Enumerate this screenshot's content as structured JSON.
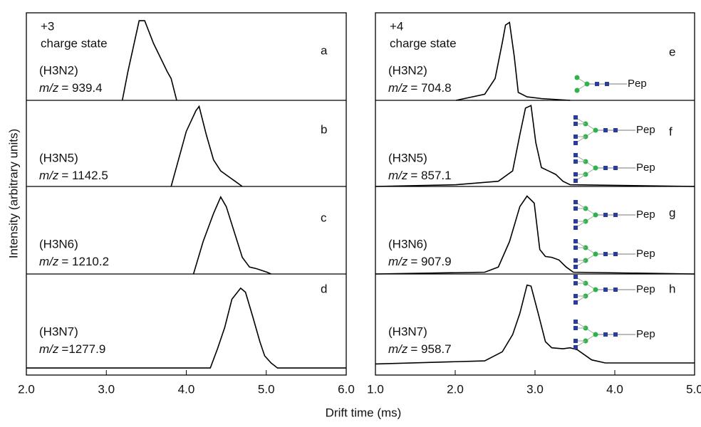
{
  "y_label": "Intensity (arbitrary units)",
  "x_label": "Drift time (ms)",
  "chart_data": [
    {
      "type": "line",
      "charge": "+3",
      "charge_text": "charge state",
      "color": "#000000",
      "xlim": [
        2.0,
        6.0
      ],
      "ylim": [
        0,
        1
      ],
      "xticks": [
        {
          "value": 2,
          "label": "2.0"
        },
        {
          "value": 3,
          "label": "3.0"
        },
        {
          "value": 4,
          "label": "4.0"
        },
        {
          "value": 5,
          "label": "5.0"
        },
        {
          "value": 6,
          "label": "6.0"
        }
      ],
      "series": [
        {
          "name": "a",
          "label": "(H3N2)",
          "mz_prefix": "m/z",
          "mz_text": "= 939.4",
          "x": [
            3.2,
            3.27,
            3.41,
            3.48,
            3.59,
            3.67,
            3.76,
            3.81,
            3.88
          ],
          "values": [
            0,
            0.33,
            0.91,
            0.91,
            0.65,
            0.5,
            0.33,
            0.25,
            0
          ]
        },
        {
          "name": "b",
          "label": "(H3N5)",
          "mz_prefix": "m/z",
          "mz_text": "= 1142.5",
          "x": [
            3.81,
            4.0,
            4.12,
            4.16,
            4.25,
            4.34,
            4.43,
            4.52,
            4.61,
            4.7
          ],
          "values": [
            0,
            0.64,
            0.88,
            0.93,
            0.6,
            0.31,
            0.18,
            0.12,
            0.06,
            0
          ]
        },
        {
          "name": "c",
          "label": "(H3N6)",
          "mz_prefix": "m/z",
          "mz_text": "= 1210.2",
          "x": [
            4.09,
            4.21,
            4.34,
            4.43,
            4.5,
            4.61,
            4.7,
            4.79,
            4.88,
            5.01,
            5.06
          ],
          "values": [
            0,
            0.37,
            0.69,
            0.88,
            0.77,
            0.45,
            0.19,
            0.08,
            0.06,
            0.02,
            0
          ]
        },
        {
          "name": "d",
          "label": "(H3N7)",
          "mz_prefix": "m/z",
          "mz_text": "=1277.9",
          "x": [
            2.0,
            4.3,
            4.39,
            4.48,
            4.57,
            4.68,
            4.74,
            4.83,
            4.92,
            4.98,
            5.06,
            5.14,
            6.0
          ],
          "values": [
            0.07,
            0.07,
            0.26,
            0.47,
            0.75,
            0.86,
            0.82,
            0.58,
            0.33,
            0.19,
            0.12,
            0.07,
            0.07
          ]
        }
      ]
    },
    {
      "type": "line",
      "charge": "+4",
      "charge_text": "charge state",
      "color": "#000000",
      "xlim": [
        1.0,
        5.0
      ],
      "ylim": [
        0,
        1
      ],
      "xticks": [
        {
          "value": 1,
          "label": "1.0"
        },
        {
          "value": 2,
          "label": "2.0"
        },
        {
          "value": 3,
          "label": "3.0"
        },
        {
          "value": 4,
          "label": "4.0"
        },
        {
          "value": 5,
          "label": "5.0"
        }
      ],
      "series": [
        {
          "name": "e",
          "label": "(H3N2)",
          "mz_prefix": "m/z",
          "mz_text": "= 704.8",
          "glycans": [
            "Pep"
          ],
          "x": [
            2.01,
            2.37,
            2.5,
            2.59,
            2.63,
            2.68,
            2.74,
            2.79,
            2.9,
            3.08,
            3.44
          ],
          "values": [
            0,
            0.07,
            0.25,
            0.66,
            0.86,
            0.89,
            0.5,
            0.09,
            0.04,
            0.02,
            0
          ]
        },
        {
          "name": "f",
          "label": "(H3N5)",
          "mz_prefix": "m/z",
          "mz_text": "= 857.1",
          "glycans": [
            "Pep",
            "Pep"
          ],
          "x": [
            1.0,
            2.01,
            2.54,
            2.72,
            2.81,
            2.88,
            2.95,
            3.01,
            3.08,
            3.17,
            3.26,
            3.35,
            3.44,
            5.0
          ],
          "values": [
            0,
            0.02,
            0.06,
            0.18,
            0.6,
            0.91,
            0.94,
            0.51,
            0.22,
            0.18,
            0.14,
            0.06,
            0.02,
            0
          ]
        },
        {
          "name": "g",
          "label": "(H3N6)",
          "mz_prefix": "m/z",
          "mz_text": "= 907.9",
          "glycans": [
            "Pep",
            "Pep"
          ],
          "x": [
            1.0,
            2.37,
            2.54,
            2.68,
            2.81,
            2.9,
            2.99,
            3.06,
            3.13,
            3.21,
            3.3,
            3.39,
            3.48,
            5.0
          ],
          "values": [
            0,
            0.02,
            0.08,
            0.37,
            0.77,
            0.89,
            0.81,
            0.28,
            0.2,
            0.19,
            0.16,
            0.08,
            0.02,
            0
          ]
        },
        {
          "name": "h",
          "label": "(H3N7)",
          "mz_prefix": "m/z",
          "mz_text": "= 958.7",
          "glycans": [
            "Pep",
            "Pep"
          ],
          "x": [
            1.0,
            2.37,
            2.59,
            2.72,
            2.81,
            2.9,
            2.95,
            3.04,
            3.13,
            3.21,
            3.35,
            3.44,
            3.53,
            3.71,
            3.88,
            5.0
          ],
          "values": [
            0.11,
            0.14,
            0.23,
            0.4,
            0.61,
            0.89,
            0.88,
            0.61,
            0.33,
            0.27,
            0.26,
            0.27,
            0.25,
            0.15,
            0.12,
            0.12
          ]
        }
      ]
    }
  ]
}
